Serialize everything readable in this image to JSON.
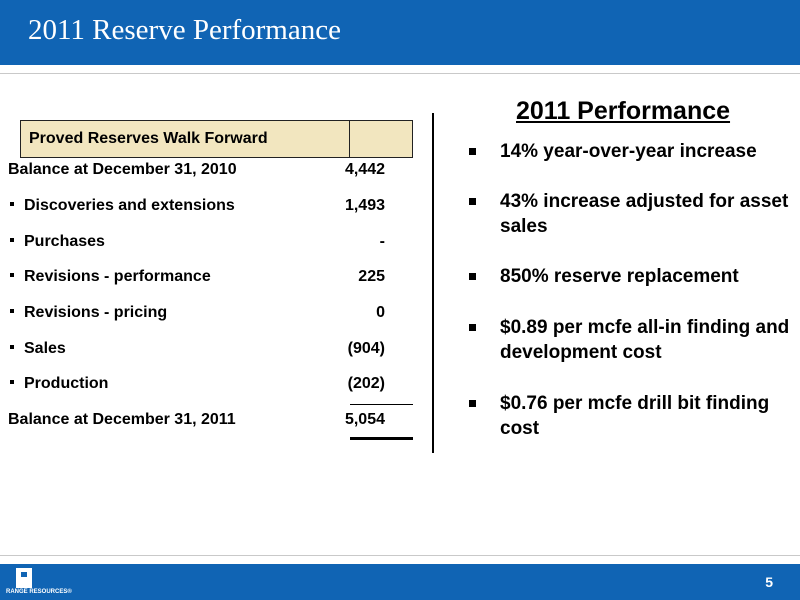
{
  "slide": {
    "title": "2011 Reserve Performance",
    "page_number": "5",
    "brand": "RANGE RESOURCES®"
  },
  "table": {
    "header": "Proved Reserves Walk Forward",
    "opening": {
      "label": "Balance at December 31, 2010",
      "value": "4,442"
    },
    "items": [
      {
        "label": "Discoveries and extensions",
        "value": "1,493"
      },
      {
        "label": "Purchases",
        "value": "-"
      },
      {
        "label": "Revisions - performance",
        "value": "225"
      },
      {
        "label": "Revisions - pricing",
        "value": "0"
      },
      {
        "label": "Sales",
        "value": "(904)"
      },
      {
        "label": "Production",
        "value": "(202)"
      }
    ],
    "closing": {
      "label": "Balance at December 31, 2011",
      "value": "5,054"
    }
  },
  "performance": {
    "title": "2011 Performance",
    "points": [
      "14% year-over-year increase",
      "43% increase adjusted for asset sales",
      "850% reserve replacement",
      "$0.89 per mcfe all-in finding and development cost",
      "$0.76 per mcfe drill bit finding cost"
    ]
  }
}
